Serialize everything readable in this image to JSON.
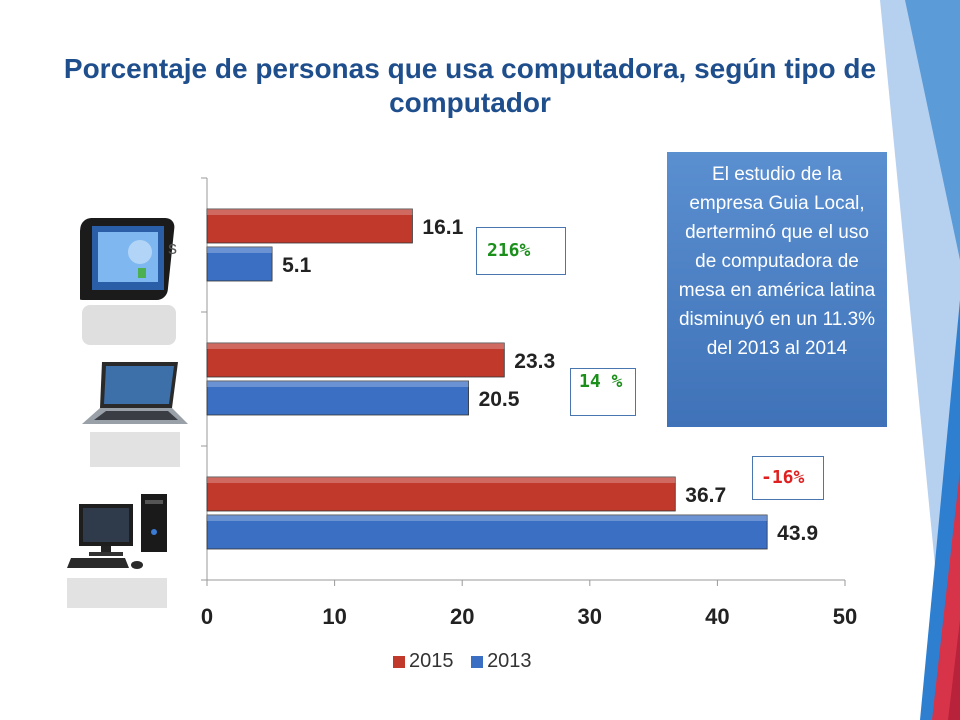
{
  "title": "Porcentaje de personas que usa computadora, según tipo de computador",
  "callout_text": "El estudio de la empresa Guia Local, derterminó que el uso de computadora de mesa en américa latina disminuyó en un 11.3% del 2013 al 2014",
  "pct_labels": [
    {
      "text": "216%",
      "color": "#1a8f1a"
    },
    {
      "text": "14 %",
      "color": "#1a8f1a"
    },
    {
      "text": "-16%",
      "color": "#e02020"
    }
  ],
  "colors": {
    "series_2015": "#c0392b",
    "series_2013": "#3a6fc4",
    "title": "#1f4e8c"
  },
  "icons": [
    "tablet-icon",
    "laptop-icon",
    "desktop-computer-icon"
  ],
  "chart_data": {
    "type": "bar",
    "orientation": "horizontal",
    "categories": [
      "tablet",
      "laptop",
      "desktop"
    ],
    "series": [
      {
        "name": "2015",
        "values": [
          16.1,
          23.3,
          36.7
        ]
      },
      {
        "name": "2013",
        "values": [
          5.1,
          20.5,
          43.9
        ]
      }
    ],
    "xticks": [
      "0",
      "10",
      "20",
      "30",
      "40",
      "50"
    ],
    "xlim": [
      0,
      50
    ],
    "grid": false,
    "legend": "bottom"
  }
}
